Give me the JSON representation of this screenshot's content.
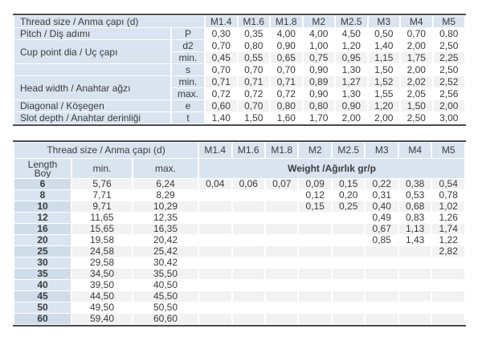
{
  "colors": {
    "header_blue": "#d9e4f0",
    "stripe_gray": "#f2f2f2",
    "border_dark": "#4a4a4a",
    "text": "#3b3b3b"
  },
  "top_table": {
    "corner_label": "Thread size / Anma çapı (d)",
    "sizes": [
      "M1.4",
      "M1.6",
      "M1.8",
      "M2",
      "M2.5",
      "M3",
      "M4",
      "M5"
    ],
    "rows": [
      {
        "label": "Pitch / Diş adımı",
        "label_rowspan": 1,
        "symbol": "P",
        "values": [
          "0,30",
          "0,35",
          "4,00",
          "4,00",
          "4,50",
          "0,50",
          "0,70",
          "0,80"
        ]
      },
      {
        "label": "Cup point dia / Uç çapı",
        "label_rowspan": 2,
        "symbol": "d2",
        "values": [
          "0,70",
          "0,80",
          "0,90",
          "1,00",
          "1,20",
          "1,40",
          "2,00",
          "2,50"
        ]
      },
      {
        "label": null,
        "symbol": "min.",
        "values": [
          "0,45",
          "0,55",
          "0,65",
          "0,75",
          "0,95",
          "1,15",
          "1,75",
          "2,25"
        ]
      },
      {
        "label": "",
        "label_rowspan": 1,
        "symbol": "s",
        "values": [
          "0,70",
          "0,70",
          "0,70",
          "0,90",
          "1,30",
          "1,50",
          "2,00",
          "2,50"
        ]
      },
      {
        "label": "Head width / Anahtar ağzı",
        "label_rowspan": 2,
        "symbol": "min.",
        "values": [
          "0,71",
          "0,71",
          "0,71",
          "0,89",
          "1,27",
          "1,52",
          "2,02",
          "2,52"
        ]
      },
      {
        "label": null,
        "symbol": "max.",
        "values": [
          "0,72",
          "0,72",
          "0,72",
          "0,90",
          "1,30",
          "1,55",
          "2,05",
          "2,56"
        ]
      },
      {
        "label": "Diagonal / Köşegen",
        "label_rowspan": 1,
        "symbol": "e",
        "values": [
          "0,60",
          "0,70",
          "0,80",
          "0,80",
          "0,90",
          "1,20",
          "1,50",
          "2,00"
        ]
      },
      {
        "label": "Slot depth / Anahtar derinliği",
        "label_rowspan": 1,
        "symbol": "t",
        "values": [
          "1,40",
          "1,50",
          "1,60",
          "1,70",
          "2,00",
          "2,00",
          "2,50",
          "3,00"
        ]
      }
    ]
  },
  "bottom_table": {
    "corner_label": "Thread size / Anma çapı (d)",
    "sizes": [
      "M1.4",
      "M1.6",
      "M1.8",
      "M2",
      "M2.5",
      "M3",
      "M4",
      "M5"
    ],
    "col_headers": {
      "length_line1": "Length",
      "length_line2": "Boy",
      "min": "min.",
      "max": "max.",
      "weight": "Weight /Ağırlık gr/p"
    },
    "rows": [
      {
        "length": "6",
        "min": "5,76",
        "max": "6,24",
        "weights": [
          "0,04",
          "0,06",
          "0,07",
          "0,09",
          "0,15",
          "0,22",
          "0,38",
          "0,54"
        ]
      },
      {
        "length": "8",
        "min": "7,71",
        "max": "8,29",
        "weights": [
          "",
          "",
          "",
          "0,12",
          "0,20",
          "0,31",
          "0,53",
          "0,78"
        ]
      },
      {
        "length": "10",
        "min": "9,71",
        "max": "10,29",
        "weights": [
          "",
          "",
          "",
          "0,15",
          "0,25",
          "0,40",
          "0,68",
          "1,02"
        ]
      },
      {
        "length": "12",
        "min": "11,65",
        "max": "12,35",
        "weights": [
          "",
          "",
          "",
          "",
          "",
          "0,49",
          "0,83",
          "1,26"
        ]
      },
      {
        "length": "16",
        "min": "15,65",
        "max": "16,35",
        "weights": [
          "",
          "",
          "",
          "",
          "",
          "0,67",
          "1,13",
          "1,74"
        ]
      },
      {
        "length": "20",
        "min": "19,58",
        "max": "20,42",
        "weights": [
          "",
          "",
          "",
          "",
          "",
          "0,85",
          "1,43",
          "1,22"
        ]
      },
      {
        "length": "25",
        "min": "24,58",
        "max": "25,42",
        "weights": [
          "",
          "",
          "",
          "",
          "",
          "",
          "",
          "2,82"
        ]
      },
      {
        "length": "30",
        "min": "29,58",
        "max": "30,42",
        "weights": [
          "",
          "",
          "",
          "",
          "",
          "",
          "",
          ""
        ]
      },
      {
        "length": "35",
        "min": "34,50",
        "max": "35,50",
        "weights": [
          "",
          "",
          "",
          "",
          "",
          "",
          "",
          ""
        ]
      },
      {
        "length": "40",
        "min": "39,50",
        "max": "40,50",
        "weights": [
          "",
          "",
          "",
          "",
          "",
          "",
          "",
          ""
        ]
      },
      {
        "length": "45",
        "min": "44,50",
        "max": "45,50",
        "weights": [
          "",
          "",
          "",
          "",
          "",
          "",
          "",
          ""
        ]
      },
      {
        "length": "50",
        "min": "49,50",
        "max": "50,50",
        "weights": [
          "",
          "",
          "",
          "",
          "",
          "",
          "",
          ""
        ]
      },
      {
        "length": "60",
        "min": "59,40",
        "max": "60,60",
        "weights": [
          "",
          "",
          "",
          "",
          "",
          "",
          "",
          ""
        ]
      }
    ]
  }
}
